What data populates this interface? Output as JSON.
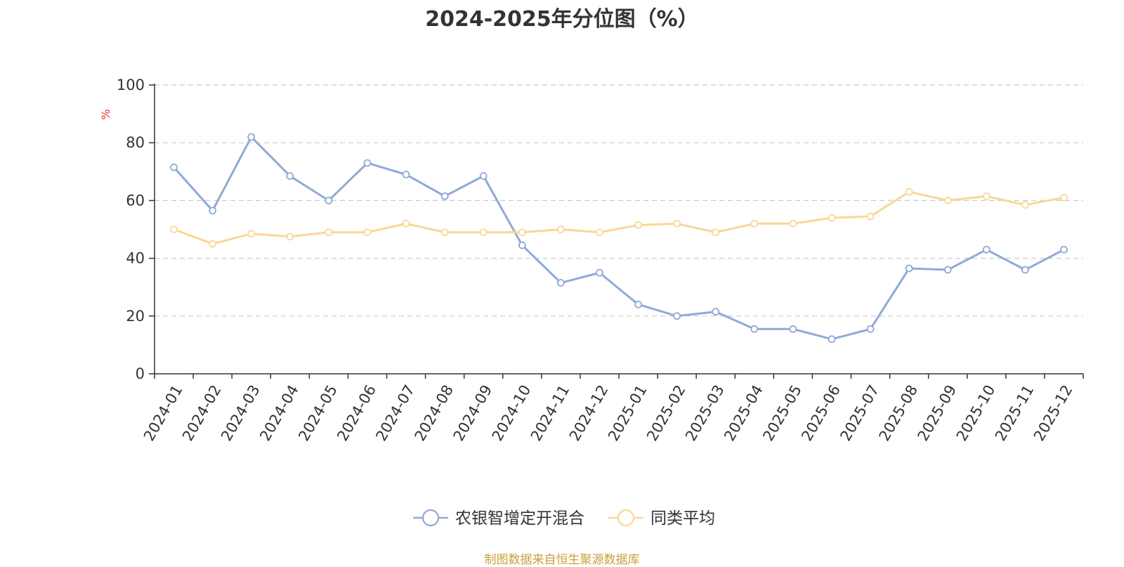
{
  "chart_data": {
    "type": "line",
    "title": "2024-2025年分位图（%）",
    "ylabel": "%",
    "xlabel": "",
    "ylim": [
      0,
      100
    ],
    "yticks": [
      0,
      20,
      40,
      60,
      80,
      100
    ],
    "grid": true,
    "legend_position": "bottom-center",
    "categories": [
      "2024-01",
      "2024-02",
      "2024-03",
      "2024-04",
      "2024-05",
      "2024-06",
      "2024-07",
      "2024-08",
      "2024-09",
      "2024-10",
      "2024-11",
      "2024-12",
      "2025-01",
      "2025-02",
      "2025-03",
      "2025-04",
      "2025-05",
      "2025-06",
      "2025-07",
      "2025-08",
      "2025-09",
      "2025-10",
      "2025-11",
      "2025-12"
    ],
    "series": [
      {
        "name": "农银智增定开混合",
        "color": "#8eaad6",
        "values": [
          71.5,
          56.5,
          82,
          68.5,
          60,
          73,
          69,
          61.5,
          68.5,
          44.5,
          31.5,
          35,
          24,
          20,
          21.5,
          15.5,
          15.5,
          12,
          15.5,
          36.5,
          36,
          43,
          36,
          43
        ]
      },
      {
        "name": "同类平均",
        "color": "#fad795",
        "values": [
          50,
          45,
          48.5,
          47.5,
          49,
          49,
          52,
          49,
          49,
          49,
          50,
          49,
          51.5,
          52,
          49,
          52,
          52,
          54,
          54.5,
          63,
          60,
          61.5,
          58.5,
          61
        ]
      }
    ]
  },
  "footer": {
    "source": "制图数据来自恒生聚源数据库"
  },
  "colors": {
    "axis": "#333333",
    "grid": "#cccccc",
    "unit": "#e3342f",
    "source": "#c8a13a"
  }
}
